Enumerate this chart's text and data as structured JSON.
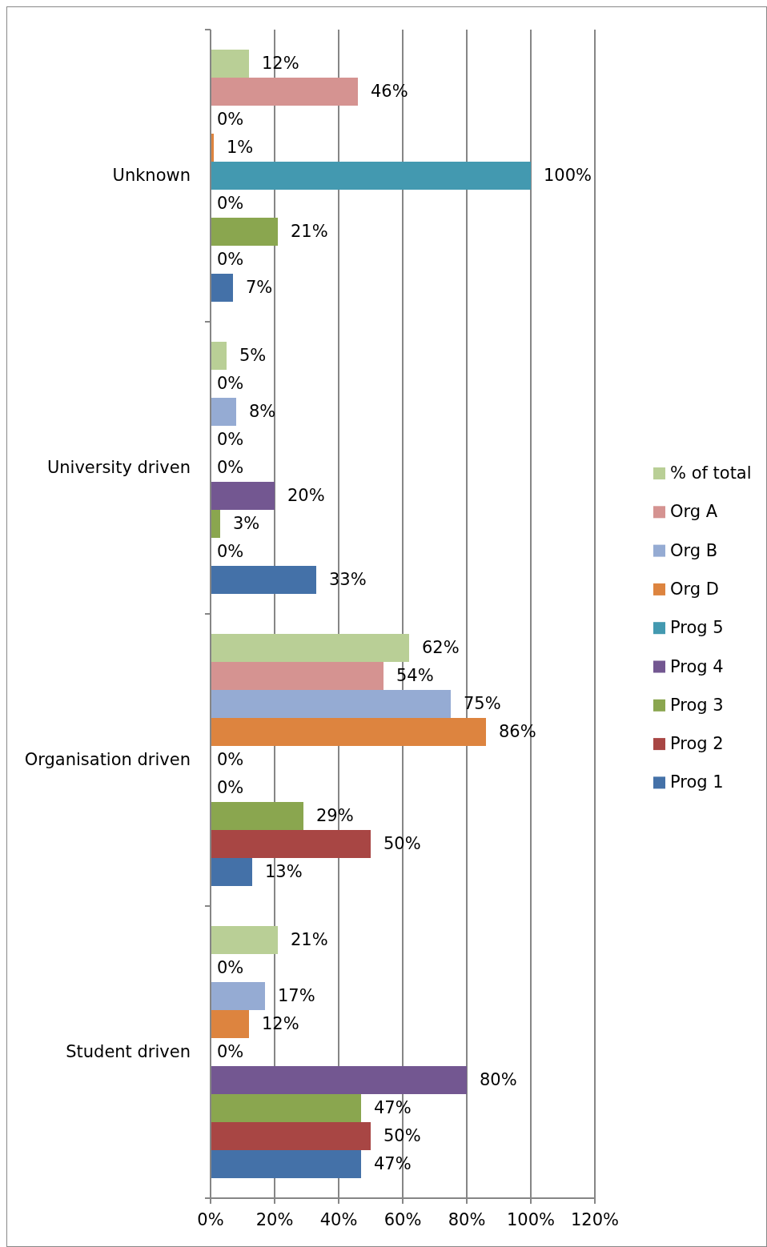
{
  "chart_data": {
    "type": "bar",
    "orientation": "horizontal",
    "categories": [
      "Unknown",
      "University driven",
      "Organisation driven",
      "Student driven"
    ],
    "xlim": [
      0,
      120
    ],
    "xticks": [
      {
        "value": 0,
        "label": "0%"
      },
      {
        "value": 20,
        "label": "20%"
      },
      {
        "value": 40,
        "label": "40%"
      },
      {
        "value": 60,
        "label": "60%"
      },
      {
        "value": 80,
        "label": "80%"
      },
      {
        "value": 100,
        "label": "100%"
      },
      {
        "value": 120,
        "label": "120%"
      }
    ],
    "grid": "x",
    "legend": "right",
    "series": [
      {
        "name": "% of total",
        "color": "#b9cf96",
        "values": [
          12,
          5,
          62,
          21
        ],
        "value_labels": [
          "12%",
          "5%",
          "62%",
          "21%"
        ]
      },
      {
        "name": "Org A",
        "color": "#d59391",
        "values": [
          46,
          0,
          54,
          0
        ],
        "value_labels": [
          "46%",
          "0%",
          "54%",
          "0%"
        ]
      },
      {
        "name": "Org B",
        "color": "#95abd3",
        "values": [
          0,
          8,
          75,
          17
        ],
        "value_labels": [
          "0%",
          "8%",
          "75%",
          "17%"
        ]
      },
      {
        "name": "Org D",
        "color": "#dd843f",
        "values": [
          1,
          0,
          86,
          12
        ],
        "value_labels": [
          "1%",
          "0%",
          "86%",
          "12%"
        ]
      },
      {
        "name": "Prog 5",
        "color": "#4399b0",
        "values": [
          100,
          0,
          0,
          0
        ],
        "value_labels": [
          "100%",
          "0%",
          "0%",
          "0%"
        ]
      },
      {
        "name": "Prog 4",
        "color": "#735791",
        "values": [
          0,
          20,
          0,
          80
        ],
        "value_labels": [
          "0%",
          "20%",
          "0%",
          "80%"
        ]
      },
      {
        "name": "Prog 3",
        "color": "#8aa64f",
        "values": [
          21,
          3,
          29,
          47
        ],
        "value_labels": [
          "21%",
          "3%",
          "29%",
          "47%"
        ]
      },
      {
        "name": "Prog 2",
        "color": "#a84644",
        "values": [
          0,
          0,
          50,
          50
        ],
        "value_labels": [
          "0%",
          "0%",
          "50%",
          "50%"
        ]
      },
      {
        "name": "Prog 1",
        "color": "#4471a8",
        "values": [
          7,
          33,
          13,
          47
        ],
        "value_labels": [
          "7%",
          "33%",
          "13%",
          "47%"
        ]
      }
    ]
  }
}
